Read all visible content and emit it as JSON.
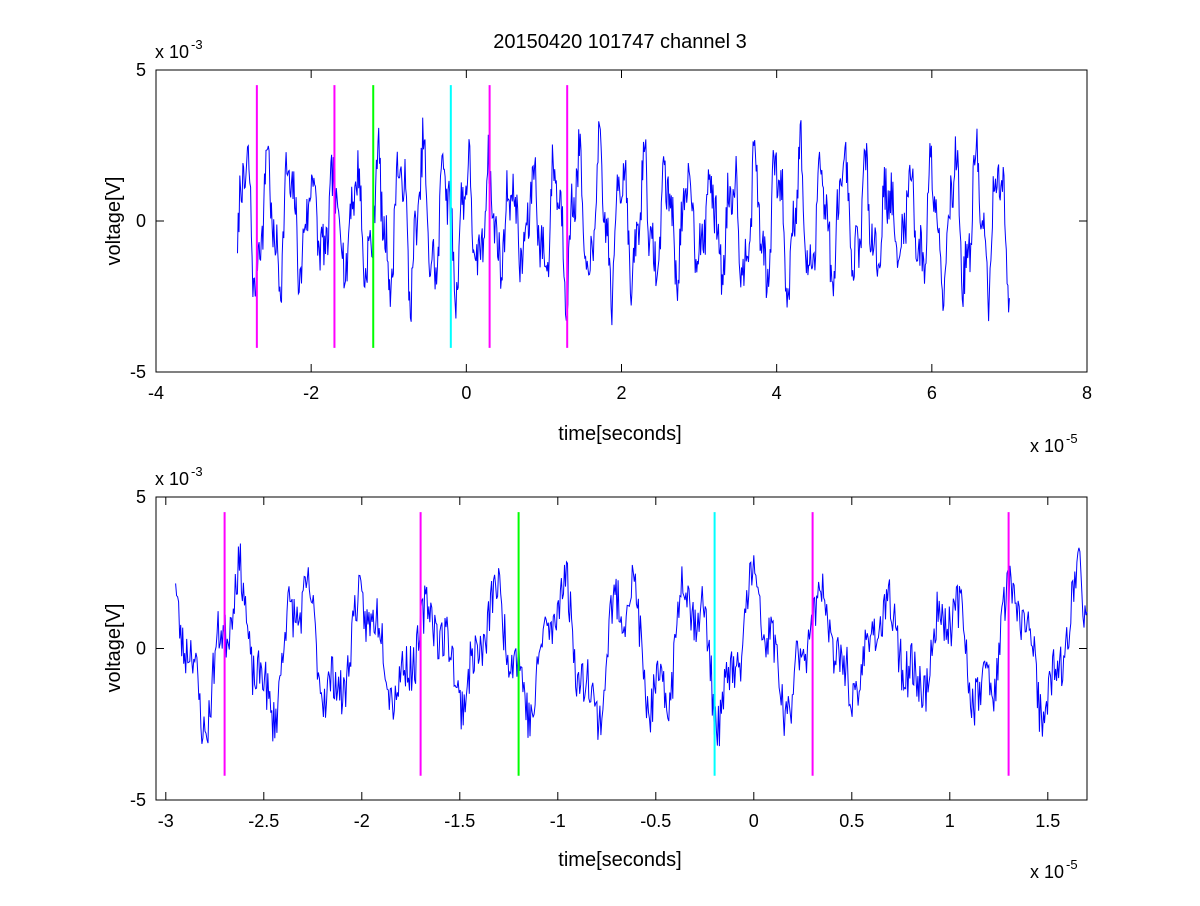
{
  "colors": {
    "trace": "#0000ff",
    "magenta": "#ff00ff",
    "green": "#00ff00",
    "cyan": "#00ffff",
    "axes": "#000000"
  },
  "chart_data": [
    {
      "type": "line",
      "title": "20150420 101747 channel 3",
      "xlabel": "time[seconds]",
      "ylabel": "voltage[V]",
      "xlim": [
        -4,
        8
      ],
      "ylim": [
        -5,
        5
      ],
      "x_ticks": [
        "-4",
        "-2",
        "0",
        "2",
        "4",
        "6",
        "8"
      ],
      "y_ticks": [
        "5",
        "0",
        "-5"
      ],
      "x_tick_values": [
        -4,
        -2,
        0,
        2,
        4,
        6,
        8
      ],
      "y_tick_values": [
        5,
        0,
        -5
      ],
      "x_multiplier": {
        "base": "x 10",
        "exponent": "-5"
      },
      "y_multiplier": {
        "base": "x 10",
        "exponent": "-3"
      },
      "grid": false,
      "series": [
        {
          "color": "#0000ff",
          "x_range": [
            -2.95,
            7.0
          ],
          "amplitude_range": [
            -3.8,
            4.0
          ]
        }
      ],
      "markers": [
        {
          "x": -2.7,
          "color": "magenta",
          "ymin": -4.2,
          "ymax": 4.5
        },
        {
          "x": -1.7,
          "color": "magenta",
          "ymin": -4.2,
          "ymax": 4.5
        },
        {
          "x": -1.2,
          "color": "green",
          "ymin": -4.2,
          "ymax": 4.5
        },
        {
          "x": -0.2,
          "color": "cyan",
          "ymin": -4.2,
          "ymax": 4.5
        },
        {
          "x": 0.3,
          "color": "magenta",
          "ymin": -4.2,
          "ymax": 4.5
        },
        {
          "x": 1.3,
          "color": "magenta",
          "ymin": -4.2,
          "ymax": 4.5
        }
      ]
    },
    {
      "type": "line",
      "title": "",
      "xlabel": "time[seconds]",
      "ylabel": "voltage[V]",
      "xlim": [
        -3.05,
        1.7
      ],
      "ylim": [
        -5,
        5
      ],
      "x_ticks": [
        "-3",
        "-2.5",
        "-2",
        "-1.5",
        "-1",
        "-0.5",
        "0",
        "0.5",
        "1",
        "1.5"
      ],
      "y_ticks": [
        "5",
        "0",
        "-5"
      ],
      "x_tick_values": [
        -3,
        -2.5,
        -2,
        -1.5,
        -1,
        -0.5,
        0,
        0.5,
        1,
        1.5
      ],
      "y_tick_values": [
        5,
        0,
        -5
      ],
      "x_multiplier": {
        "base": "x 10",
        "exponent": "-5"
      },
      "y_multiplier": {
        "base": "x 10",
        "exponent": "-3"
      },
      "grid": false,
      "series": [
        {
          "color": "#0000ff",
          "x_range": [
            -2.95,
            1.7
          ],
          "amplitude_range": [
            -3.6,
            3.5
          ]
        }
      ],
      "markers": [
        {
          "x": -2.7,
          "color": "magenta",
          "ymin": -4.2,
          "ymax": 4.5
        },
        {
          "x": -1.7,
          "color": "magenta",
          "ymin": -4.2,
          "ymax": 4.5
        },
        {
          "x": -1.2,
          "color": "green",
          "ymin": -4.2,
          "ymax": 4.5
        },
        {
          "x": -0.2,
          "color": "cyan",
          "ymin": -4.2,
          "ymax": 4.5
        },
        {
          "x": 0.3,
          "color": "magenta",
          "ymin": -4.2,
          "ymax": 4.5
        },
        {
          "x": 1.3,
          "color": "magenta",
          "ymin": -4.2,
          "ymax": 4.5
        }
      ]
    }
  ]
}
